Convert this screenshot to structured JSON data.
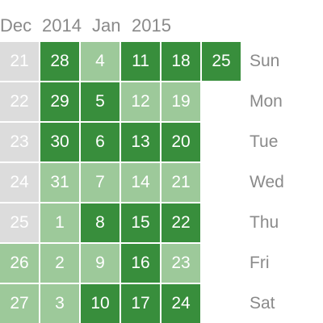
{
  "months": [
    "Dec",
    "2014",
    "Jan",
    "2015"
  ],
  "weekdays": [
    "Sun",
    "Mon",
    "Tue",
    "Wed",
    "Thu",
    "Fri",
    "Sat"
  ],
  "colors": {
    "empty": "#dcdcdc",
    "light": "#9dc99a",
    "dark": "#388e3c",
    "label": "#8a8a8a"
  },
  "weeks": [
    [
      {
        "day": "21",
        "level": 0
      },
      {
        "day": "22",
        "level": 0
      },
      {
        "day": "23",
        "level": 0
      },
      {
        "day": "24",
        "level": 0
      },
      {
        "day": "25",
        "level": 0
      },
      {
        "day": "26",
        "level": 1
      },
      {
        "day": "27",
        "level": 1
      }
    ],
    [
      {
        "day": "28",
        "level": 2
      },
      {
        "day": "29",
        "level": 2
      },
      {
        "day": "30",
        "level": 2
      },
      {
        "day": "31",
        "level": 1
      },
      {
        "day": "1",
        "level": 1
      },
      {
        "day": "2",
        "level": 1
      },
      {
        "day": "3",
        "level": 1
      }
    ],
    [
      {
        "day": "4",
        "level": 1
      },
      {
        "day": "5",
        "level": 2
      },
      {
        "day": "6",
        "level": 2
      },
      {
        "day": "7",
        "level": 1
      },
      {
        "day": "8",
        "level": 2
      },
      {
        "day": "9",
        "level": 1
      },
      {
        "day": "10",
        "level": 2
      }
    ],
    [
      {
        "day": "11",
        "level": 2
      },
      {
        "day": "12",
        "level": 1
      },
      {
        "day": "13",
        "level": 2
      },
      {
        "day": "14",
        "level": 1
      },
      {
        "day": "15",
        "level": 2
      },
      {
        "day": "16",
        "level": 2
      },
      {
        "day": "17",
        "level": 2
      }
    ],
    [
      {
        "day": "18",
        "level": 2
      },
      {
        "day": "19",
        "level": 1
      },
      {
        "day": "20",
        "level": 2
      },
      {
        "day": "21",
        "level": 1
      },
      {
        "day": "22",
        "level": 2
      },
      {
        "day": "23",
        "level": 1
      },
      {
        "day": "24",
        "level": 2
      }
    ],
    [
      {
        "day": "25",
        "level": 2
      }
    ]
  ]
}
